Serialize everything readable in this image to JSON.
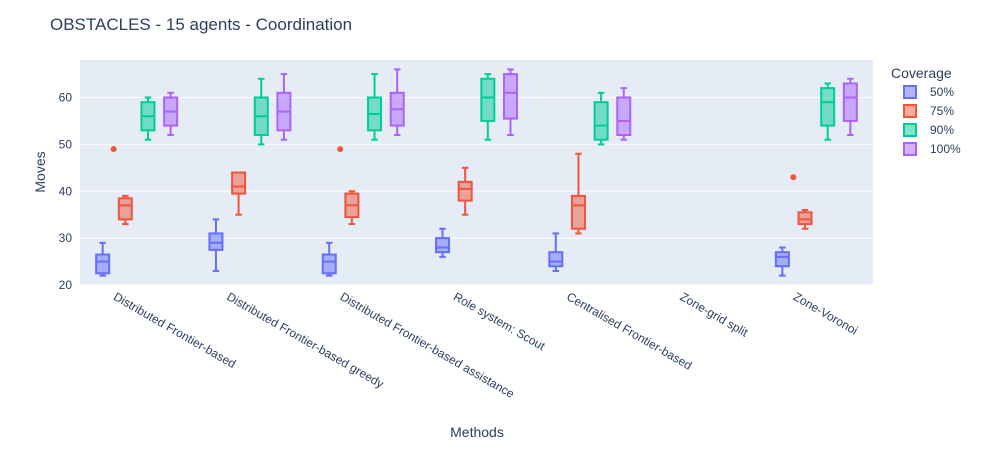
{
  "chart_data": {
    "type": "box",
    "title": "OBSTACLES - 15 agents - Coordination",
    "xlabel": "Methods",
    "ylabel": "Moves",
    "ylim": [
      20,
      68
    ],
    "yticks": [
      20,
      30,
      40,
      50,
      60
    ],
    "grid": true,
    "legend_title": "Coverage",
    "legend_position": "top-right",
    "categories": [
      "Distributed Frontier-based",
      "Distributed Frontier-based greedy",
      "Distributed Frontier-based assistance",
      "Role system: Scout",
      "Centralised Frontier-based",
      "Zone-grid split",
      "Zone-Voronoi"
    ],
    "series": [
      {
        "name": "50%",
        "color": "#636efa",
        "boxes": [
          {
            "min": 22,
            "q1": 22.5,
            "median": 25,
            "q3": 26.5,
            "max": 29,
            "outliers": []
          },
          {
            "min": 23,
            "q1": 27.5,
            "median": 29,
            "q3": 31,
            "max": 34,
            "outliers": []
          },
          {
            "min": 22,
            "q1": 22.5,
            "median": 25,
            "q3": 26.5,
            "max": 29,
            "outliers": []
          },
          {
            "min": 26,
            "q1": 27,
            "median": 28,
            "q3": 30,
            "max": 32,
            "outliers": []
          },
          {
            "min": 23,
            "q1": 24,
            "median": 25,
            "q3": 27,
            "max": 31,
            "outliers": []
          },
          null,
          {
            "min": 22,
            "q1": 24,
            "median": 26,
            "q3": 27,
            "max": 28,
            "outliers": []
          }
        ]
      },
      {
        "name": "75%",
        "color": "#ef553b",
        "boxes": [
          {
            "min": 33,
            "q1": 34,
            "median": 37,
            "q3": 38.5,
            "max": 39,
            "outliers": [
              49
            ]
          },
          {
            "min": 35,
            "q1": 39.5,
            "median": 41,
            "q3": 44,
            "max": 44,
            "outliers": []
          },
          {
            "min": 33,
            "q1": 34.5,
            "median": 37,
            "q3": 39.5,
            "max": 40,
            "outliers": [
              49
            ]
          },
          {
            "min": 35,
            "q1": 38,
            "median": 40.5,
            "q3": 42,
            "max": 45,
            "outliers": []
          },
          {
            "min": 31,
            "q1": 32,
            "median": 37,
            "q3": 39,
            "max": 48,
            "outliers": []
          },
          null,
          {
            "min": 32,
            "q1": 33,
            "median": 34,
            "q3": 35.5,
            "max": 36,
            "outliers": [
              43
            ]
          }
        ]
      },
      {
        "name": "90%",
        "color": "#00cc96",
        "boxes": [
          {
            "min": 51,
            "q1": 53,
            "median": 56,
            "q3": 59,
            "max": 60,
            "outliers": []
          },
          {
            "min": 50,
            "q1": 52,
            "median": 56,
            "q3": 60,
            "max": 64,
            "outliers": []
          },
          {
            "min": 51,
            "q1": 53,
            "median": 56.5,
            "q3": 60,
            "max": 65,
            "outliers": []
          },
          {
            "min": 51,
            "q1": 55,
            "median": 60,
            "q3": 64,
            "max": 65,
            "outliers": []
          },
          {
            "min": 50,
            "q1": 51,
            "median": 54,
            "q3": 59,
            "max": 61,
            "outliers": []
          },
          null,
          {
            "min": 51,
            "q1": 54,
            "median": 59,
            "q3": 62,
            "max": 63,
            "outliers": []
          }
        ]
      },
      {
        "name": "100%",
        "color": "#ab63fa",
        "boxes": [
          {
            "min": 52,
            "q1": 54,
            "median": 57,
            "q3": 60,
            "max": 61,
            "outliers": []
          },
          {
            "min": 51,
            "q1": 53,
            "median": 57,
            "q3": 61,
            "max": 65,
            "outliers": []
          },
          {
            "min": 52,
            "q1": 54,
            "median": 57.5,
            "q3": 61,
            "max": 66,
            "outliers": []
          },
          {
            "min": 52,
            "q1": 55.5,
            "median": 61,
            "q3": 65,
            "max": 66,
            "outliers": []
          },
          {
            "min": 51,
            "q1": 52,
            "median": 55,
            "q3": 60,
            "max": 62,
            "outliers": []
          },
          null,
          {
            "min": 52,
            "q1": 55,
            "median": 60,
            "q3": 63,
            "max": 64,
            "outliers": []
          }
        ]
      }
    ]
  }
}
